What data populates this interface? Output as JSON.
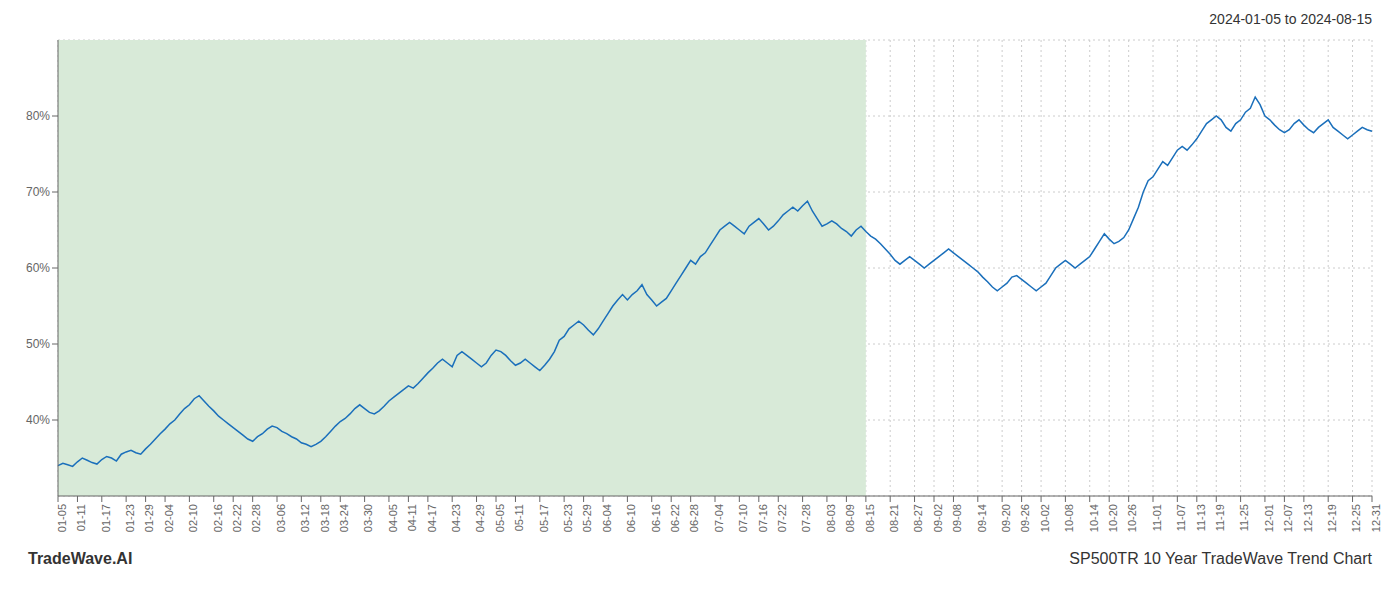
{
  "chart_data": {
    "type": "line",
    "title": "2024-01-05 to 2024-08-15",
    "annotations": [
      "TradeWave.AI",
      "SP500TR 10 Year TradeWave Trend Chart"
    ],
    "color": "#1a6fbb",
    "grid": true,
    "ylim": [
      30,
      90
    ],
    "yticks": [
      {
        "value": 40,
        "label": "40%"
      },
      {
        "value": 50,
        "label": "50%"
      },
      {
        "value": 60,
        "label": "60%"
      },
      {
        "value": 70,
        "label": "70%"
      },
      {
        "value": 80,
        "label": "80%"
      }
    ],
    "shade": {
      "start": "01-05",
      "end": "08-15",
      "color": "#d8ead8"
    },
    "categories": [
      "01-05",
      null,
      null,
      null,
      "01-11",
      null,
      null,
      null,
      null,
      "01-17",
      null,
      null,
      null,
      null,
      "01-23",
      null,
      null,
      null,
      "01-29",
      null,
      null,
      null,
      "02-04",
      null,
      null,
      null,
      null,
      "02-10",
      null,
      null,
      null,
      null,
      "02-16",
      null,
      null,
      null,
      "02-22",
      null,
      null,
      null,
      "02-28",
      null,
      null,
      null,
      null,
      "03-06",
      null,
      null,
      null,
      null,
      "03-12",
      null,
      null,
      null,
      "03-18",
      null,
      null,
      null,
      "03-24",
      null,
      null,
      null,
      null,
      "03-30",
      null,
      null,
      null,
      null,
      "04-05",
      null,
      null,
      null,
      "04-11",
      null,
      null,
      null,
      "04-17",
      null,
      null,
      null,
      null,
      "04-23",
      null,
      null,
      null,
      null,
      "04-29",
      null,
      null,
      null,
      "05-05",
      null,
      null,
      null,
      "05-11",
      null,
      null,
      null,
      null,
      "05-17",
      null,
      null,
      null,
      null,
      "05-23",
      null,
      null,
      null,
      "05-29",
      null,
      null,
      null,
      "06-04",
      null,
      null,
      null,
      null,
      "06-10",
      null,
      null,
      null,
      null,
      "06-16",
      null,
      null,
      null,
      "06-22",
      null,
      null,
      null,
      "06-28",
      null,
      null,
      null,
      null,
      "07-04",
      null,
      null,
      null,
      null,
      "07-10",
      null,
      null,
      null,
      "07-16",
      null,
      null,
      null,
      "07-22",
      null,
      null,
      null,
      null,
      "07-28",
      null,
      null,
      null,
      null,
      "08-03",
      null,
      null,
      null,
      "08-09",
      null,
      null,
      null,
      "08-15",
      null,
      null,
      null,
      null,
      "08-21",
      null,
      null,
      null,
      null,
      "08-27",
      null,
      null,
      null,
      "09-02",
      null,
      null,
      null,
      "09-08",
      null,
      null,
      null,
      null,
      "09-14",
      null,
      null,
      null,
      null,
      "09-20",
      null,
      null,
      null,
      "09-26",
      null,
      null,
      null,
      "10-02",
      null,
      null,
      null,
      null,
      "10-08",
      null,
      null,
      null,
      null,
      "10-14",
      null,
      null,
      null,
      "10-20",
      null,
      null,
      null,
      "10-26",
      null,
      null,
      null,
      null,
      "11-01",
      null,
      null,
      null,
      null,
      "11-07",
      null,
      null,
      null,
      "11-13",
      null,
      null,
      null,
      "11-19",
      null,
      null,
      null,
      null,
      "11-25",
      null,
      null,
      null,
      null,
      "12-01",
      null,
      null,
      null,
      "12-07",
      null,
      null,
      null,
      "12-13",
      null,
      null,
      null,
      null,
      "12-19",
      null,
      null,
      null,
      null,
      "12-25",
      null,
      null,
      null,
      "12-31"
    ],
    "values": [
      34.0,
      34.3,
      34.1,
      33.9,
      34.5,
      35.0,
      34.7,
      34.4,
      34.2,
      34.8,
      35.2,
      35.0,
      34.6,
      35.5,
      35.8,
      36.0,
      35.7,
      35.5,
      36.2,
      36.8,
      37.5,
      38.2,
      38.8,
      39.5,
      40.0,
      40.8,
      41.5,
      42.0,
      42.8,
      43.2,
      42.5,
      41.8,
      41.2,
      40.5,
      40.0,
      39.5,
      39.0,
      38.5,
      38.0,
      37.5,
      37.2,
      37.8,
      38.2,
      38.8,
      39.2,
      39.0,
      38.5,
      38.2,
      37.8,
      37.5,
      37.0,
      36.8,
      36.5,
      36.8,
      37.2,
      37.8,
      38.5,
      39.2,
      39.8,
      40.2,
      40.8,
      41.5,
      42.0,
      41.5,
      41.0,
      40.8,
      41.2,
      41.8,
      42.5,
      43.0,
      43.5,
      44.0,
      44.5,
      44.2,
      44.8,
      45.5,
      46.2,
      46.8,
      47.5,
      48.0,
      47.5,
      47.0,
      48.5,
      49.0,
      48.5,
      48.0,
      47.5,
      47.0,
      47.5,
      48.5,
      49.2,
      49.0,
      48.5,
      47.8,
      47.2,
      47.5,
      48.0,
      47.5,
      47.0,
      46.5,
      47.2,
      48.0,
      49.0,
      50.5,
      51.0,
      52.0,
      52.5,
      53.0,
      52.5,
      51.8,
      51.2,
      52.0,
      53.0,
      54.0,
      55.0,
      55.8,
      56.5,
      55.8,
      56.5,
      57.0,
      57.8,
      56.5,
      55.8,
      55.0,
      55.5,
      56.0,
      57.0,
      58.0,
      59.0,
      60.0,
      61.0,
      60.5,
      61.5,
      62.0,
      63.0,
      64.0,
      65.0,
      65.5,
      66.0,
      65.5,
      65.0,
      64.5,
      65.5,
      66.0,
      66.5,
      65.8,
      65.0,
      65.5,
      66.2,
      67.0,
      67.5,
      68.0,
      67.5,
      68.2,
      68.8,
      67.5,
      66.5,
      65.5,
      65.8,
      66.2,
      65.8,
      65.2,
      64.8,
      64.2,
      65.0,
      65.5,
      64.8,
      64.2,
      63.8,
      63.2,
      62.5,
      61.8,
      61.0,
      60.5,
      61.0,
      61.5,
      61.0,
      60.5,
      60.0,
      60.5,
      61.0,
      61.5,
      62.0,
      62.5,
      62.0,
      61.5,
      61.0,
      60.5,
      60.0,
      59.5,
      58.8,
      58.2,
      57.5,
      57.0,
      57.5,
      58.0,
      58.8,
      59.0,
      58.5,
      58.0,
      57.5,
      57.0,
      57.5,
      58.0,
      59.0,
      60.0,
      60.5,
      61.0,
      60.5,
      60.0,
      60.5,
      61.0,
      61.5,
      62.5,
      63.5,
      64.5,
      63.8,
      63.2,
      63.5,
      64.0,
      65.0,
      66.5,
      68.0,
      70.0,
      71.5,
      72.0,
      73.0,
      74.0,
      73.5,
      74.5,
      75.5,
      76.0,
      75.5,
      76.2,
      77.0,
      78.0,
      79.0,
      79.5,
      80.0,
      79.5,
      78.5,
      78.0,
      79.0,
      79.5,
      80.5,
      81.0,
      82.5,
      81.5,
      80.0,
      79.5,
      78.8,
      78.2,
      77.8,
      78.2,
      79.0,
      79.5,
      78.8,
      78.2,
      77.8,
      78.5,
      79.0,
      79.5,
      78.5,
      78.0,
      77.5,
      77.0,
      77.5,
      78.0,
      78.5,
      78.2,
      78.0
    ]
  }
}
